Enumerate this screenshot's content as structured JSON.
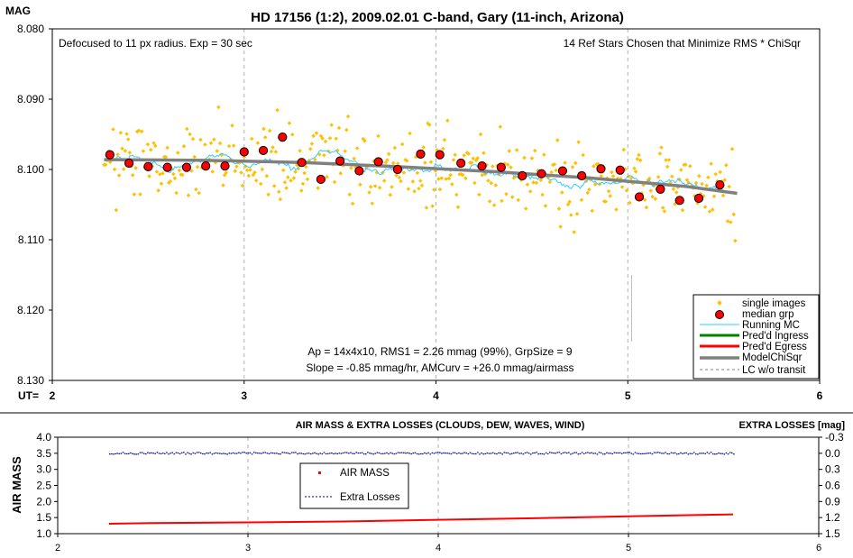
{
  "chart_data": [
    {
      "type": "scatter",
      "title": "HD 17156 (1:2), 2009.02.01 C-band, Gary (11-inch, Arizona)",
      "ylabel": "MAG",
      "xlabel": "UT=",
      "xlim": [
        2,
        6
      ],
      "ylim": [
        8.13,
        8.08
      ],
      "y_inverted": true,
      "xticks": [
        "2",
        "3",
        "4",
        "5",
        "6"
      ],
      "yticks": [
        "8.080",
        "8.090",
        "8.100",
        "8.110",
        "8.120",
        "8.130"
      ],
      "grid": "vertical dashed",
      "legend_position": "bottom-right",
      "annotations": {
        "top_left": "Defocused to 11 px radius.  Exp = 30 sec",
        "top_right": "14 Ref Stars Chosen that Minimize RMS * ChiSqr",
        "bottom_line1": "Ap = 14x4x10, RMS1 = 2.26 mmag (99%), GrpSize = 9",
        "bottom_line2": "Slope = -0.85 mmag/hr, AMCurv = +26.0 mmag/airmass"
      },
      "legend": {
        "single": "single images",
        "median": "median grp",
        "running": "Running MC",
        "ingress": "Pred'd Ingress",
        "egress": "Pred'd Egress",
        "model": "ModelChiSqr",
        "lcwo": "LC w/o transit"
      },
      "colors": {
        "single": "#FFC000",
        "median_fill": "#FF0000",
        "running": "#33CCFF",
        "ingress": "#008000",
        "egress": "#FF0000",
        "model": "#808080",
        "lcwo": "#808080"
      },
      "series": [
        {
          "name": "median grp",
          "x": [
            2.3,
            2.4,
            2.5,
            2.6,
            2.7,
            2.8,
            2.9,
            3.0,
            3.1,
            3.2,
            3.3,
            3.4,
            3.5,
            3.6,
            3.7,
            3.8,
            3.92,
            4.02,
            4.13,
            4.24,
            4.34,
            4.45,
            4.55,
            4.66,
            4.76,
            4.86,
            4.96,
            5.06,
            5.17,
            5.27,
            5.37,
            5.48
          ],
          "y": [
            8.0979,
            8.0991,
            8.0996,
            8.0997,
            8.0997,
            8.0995,
            8.0995,
            8.0975,
            8.0973,
            8.0954,
            8.099,
            8.1014,
            8.0988,
            8.1002,
            8.0989,
            8.1,
            8.0978,
            8.0979,
            8.0991,
            8.0995,
            8.0997,
            8.1009,
            8.1006,
            8.1002,
            8.1009,
            8.0999,
            8.1001,
            8.1039,
            8.1028,
            8.1044,
            8.1041,
            8.1022
          ]
        },
        {
          "name": "ModelChiSqr",
          "x": [
            2.27,
            2.8,
            3.3,
            3.8,
            4.3,
            4.8,
            5.3,
            5.57
          ],
          "y": [
            8.0986,
            8.0987,
            8.099,
            8.0996,
            8.1003,
            8.1012,
            8.1024,
            8.1034
          ]
        }
      ]
    },
    {
      "type": "line",
      "title": "AIR MASS & EXTRA LOSSES (CLOUDS, DEW, WAVES, WIND)",
      "ylabel": "AIR MASS",
      "y2label": "EXTRA LOSSES [mag]",
      "xlim": [
        2,
        6
      ],
      "ylim": [
        1.0,
        4.0
      ],
      "y2lim": [
        1.5,
        -0.3
      ],
      "xticks": [
        "2",
        "3",
        "4",
        "5",
        "6"
      ],
      "yticks": [
        "4.0",
        "3.5",
        "3.0",
        "2.5",
        "2.0",
        "1.5",
        "1.0"
      ],
      "y2ticks": [
        "-0.3",
        "0.0",
        "0.3",
        "0.6",
        "0.9",
        "1.2",
        "1.5"
      ],
      "grid": "vertical dashed",
      "legend": {
        "airmass": "AIR MASS",
        "extra": "Extra Losses"
      },
      "colors": {
        "airmass": "#FF0000",
        "extra": "#000080"
      },
      "series": [
        {
          "name": "AIR MASS",
          "x": [
            2.27,
            2.5,
            3.0,
            3.5,
            4.0,
            4.5,
            5.0,
            5.55
          ],
          "y": [
            1.31,
            1.33,
            1.35,
            1.38,
            1.43,
            1.48,
            1.54,
            1.6
          ]
        },
        {
          "name": "Extra Losses",
          "x": [
            2.27,
            5.55
          ],
          "y": [
            0.0,
            0.0
          ]
        }
      ]
    }
  ]
}
